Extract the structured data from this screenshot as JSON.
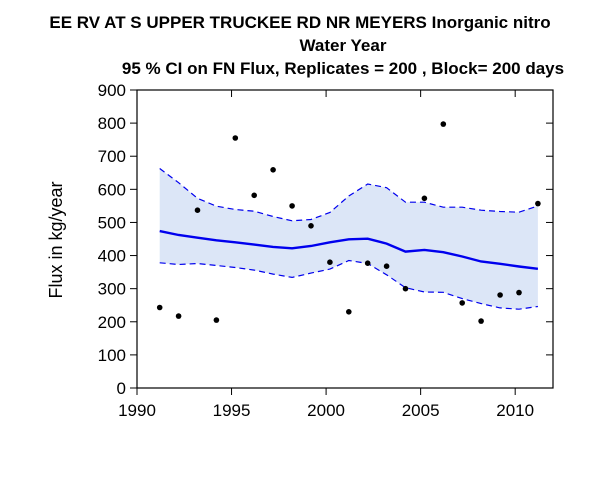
{
  "chart_data": {
    "type": "line",
    "title": "EE RV AT S UPPER TRUCKEE RD NR MEYERS   Inorganic nitro",
    "subtitle_line2": "Water Year",
    "subtitle_line3": "95 % CI on FN Flux, Replicates = 200 , Block= 200 days",
    "xlabel": "",
    "ylabel": "Flux in kg/year",
    "xlim": [
      1990,
      2012
    ],
    "ylim": [
      0,
      900
    ],
    "x_ticks": [
      1990,
      1995,
      2000,
      2005,
      2010
    ],
    "y_ticks": [
      0,
      100,
      200,
      300,
      400,
      500,
      600,
      700,
      800,
      900
    ],
    "grid": false,
    "legend": "none",
    "colors": {
      "fn_flux_line": "#0000ee",
      "ci_band_fill": "#dce6f7",
      "ci_bounds_line": "#0000ee",
      "points": "#000000",
      "axis": "#000000"
    },
    "series": [
      {
        "kind": "line",
        "x": [
          1991.2,
          1992.2,
          1993.2,
          1994.2,
          1995.2,
          1996.2,
          1997.2,
          1998.2,
          1999.2,
          2000.2,
          2001.2,
          2002.2,
          2003.2,
          2004.2,
          2005.2,
          2006.2,
          2007.2,
          2008.2,
          2009.2,
          2010.2,
          2011.2
        ],
        "y": [
          474,
          462,
          454,
          446,
          440,
          433,
          426,
          422,
          429,
          440,
          449,
          451,
          436,
          412,
          417,
          410,
          397,
          382,
          375,
          367,
          360
        ]
      },
      {
        "kind": "ci_upper",
        "x": [
          1991.2,
          1992.2,
          1993.2,
          1994.2,
          1995.2,
          1996.2,
          1997.2,
          1998.2,
          1999.2,
          2000.2,
          2001.2,
          2002.2,
          2003.2,
          2004.2,
          2005.2,
          2006.2,
          2007.2,
          2008.2,
          2009.2,
          2010.2,
          2011.2
        ],
        "y": [
          663,
          620,
          573,
          549,
          539,
          534,
          518,
          505,
          509,
          530,
          580,
          616,
          605,
          561,
          561,
          546,
          546,
          537,
          533,
          531,
          550
        ]
      },
      {
        "kind": "ci_lower",
        "x": [
          1991.2,
          1992.2,
          1993.2,
          1994.2,
          1995.2,
          1996.2,
          1997.2,
          1998.2,
          1999.2,
          2000.2,
          2001.2,
          2002.2,
          2003.2,
          2004.2,
          2005.2,
          2006.2,
          2007.2,
          2008.2,
          2009.2,
          2010.2,
          2011.2
        ],
        "y": [
          378,
          373,
          376,
          370,
          364,
          356,
          344,
          334,
          347,
          359,
          385,
          376,
          342,
          303,
          290,
          289,
          270,
          255,
          242,
          238,
          246
        ]
      },
      {
        "kind": "scatter",
        "x": [
          1991.2,
          1992.2,
          1993.2,
          1994.2,
          1995.2,
          1996.2,
          1997.2,
          1998.2,
          1999.2,
          2000.2,
          2001.2,
          2002.2,
          2003.2,
          2004.2,
          2005.2,
          2006.2,
          2007.2,
          2008.2,
          2009.2,
          2010.2,
          2011.2
        ],
        "y": [
          243,
          217,
          537,
          205,
          755,
          582,
          659,
          550,
          490,
          380,
          230,
          377,
          368,
          300,
          573,
          797,
          257,
          202,
          281,
          288,
          557
        ]
      }
    ]
  }
}
